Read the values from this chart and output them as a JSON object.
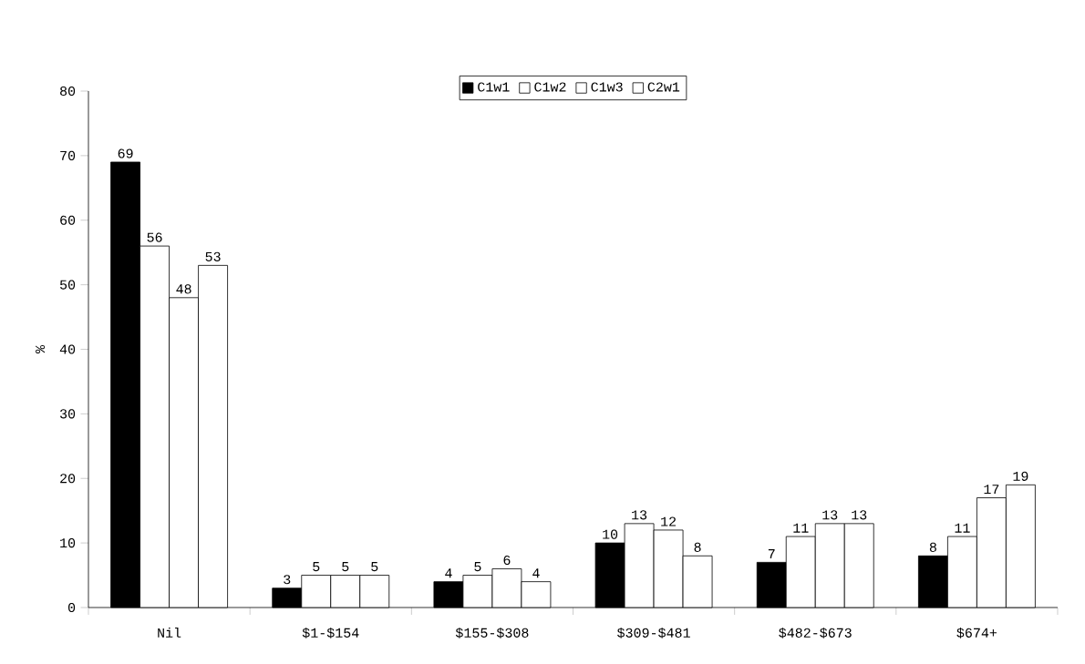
{
  "chart_data": {
    "type": "bar",
    "ylabel": "%",
    "categories": [
      "Nil",
      "$1-$154",
      "$155-$308",
      "$309-$481",
      "$482-$673",
      "$674+"
    ],
    "series": [
      {
        "name": "C1w1",
        "color": "#000000",
        "values": [
          69,
          3,
          4,
          10,
          7,
          8
        ]
      },
      {
        "name": "C1w2",
        "color": "#ffffff",
        "values": [
          56,
          5,
          5,
          13,
          11,
          11
        ]
      },
      {
        "name": "C1w3",
        "color": "#ffffff",
        "values": [
          48,
          5,
          6,
          12,
          13,
          17
        ]
      },
      {
        "name": "C2w1",
        "color": "#ffffff",
        "values": [
          53,
          5,
          4,
          8,
          13,
          19
        ]
      }
    ],
    "ylim": [
      0,
      80
    ],
    "yticks": [
      0,
      10,
      20,
      30,
      40,
      50,
      60,
      70,
      80
    ],
    "data_labels": true,
    "legend": "top",
    "grid": false
  }
}
